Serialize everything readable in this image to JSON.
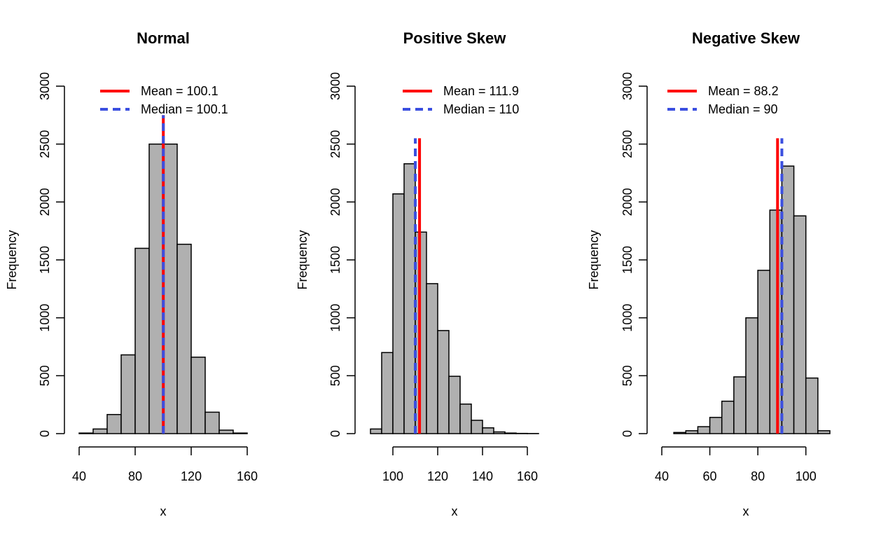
{
  "colors": {
    "bar_fill": "#b0b0b0",
    "bar_stroke": "#000000",
    "mean_line": "#ff0000",
    "median_line": "#3b4fe0"
  },
  "chart_data": [
    {
      "type": "bar",
      "title": "Normal",
      "xlabel": "x",
      "ylabel": "Frequency",
      "xlim": [
        40,
        160
      ],
      "ylim": [
        0,
        3000
      ],
      "xticks": [
        40,
        80,
        120,
        160
      ],
      "yticks": [
        0,
        500,
        1000,
        1500,
        2000,
        2500,
        3000
      ],
      "bins": [
        {
          "from": 40,
          "to": 50,
          "count": 5
        },
        {
          "from": 50,
          "to": 60,
          "count": 40
        },
        {
          "from": 60,
          "to": 70,
          "count": 165
        },
        {
          "from": 70,
          "to": 80,
          "count": 680
        },
        {
          "from": 80,
          "to": 90,
          "count": 1600
        },
        {
          "from": 90,
          "to": 100,
          "count": 2500
        },
        {
          "from": 100,
          "to": 110,
          "count": 2500
        },
        {
          "from": 110,
          "to": 120,
          "count": 1635
        },
        {
          "from": 120,
          "to": 130,
          "count": 660
        },
        {
          "from": 130,
          "to": 140,
          "count": 185
        },
        {
          "from": 140,
          "to": 150,
          "count": 30
        },
        {
          "from": 150,
          "to": 160,
          "count": 5
        }
      ],
      "mean": 100.1,
      "median": 100.1,
      "line_top": 2750,
      "legend": {
        "position": "top-right",
        "mean_label": "Mean =  100.1",
        "median_label": "Median =  100.1"
      }
    },
    {
      "type": "bar",
      "title": "Positive Skew",
      "xlabel": "x",
      "ylabel": "Frequency",
      "xlim": [
        90,
        165
      ],
      "ylim": [
        0,
        3000
      ],
      "xticks": [
        100,
        120,
        140,
        160
      ],
      "yticks": [
        0,
        500,
        1000,
        1500,
        2000,
        2500,
        3000
      ],
      "bins": [
        {
          "from": 90,
          "to": 95,
          "count": 40
        },
        {
          "from": 95,
          "to": 100,
          "count": 700
        },
        {
          "from": 100,
          "to": 105,
          "count": 2070
        },
        {
          "from": 105,
          "to": 110,
          "count": 2330
        },
        {
          "from": 110,
          "to": 115,
          "count": 1740
        },
        {
          "from": 115,
          "to": 120,
          "count": 1295
        },
        {
          "from": 120,
          "to": 125,
          "count": 890
        },
        {
          "from": 125,
          "to": 130,
          "count": 495
        },
        {
          "from": 130,
          "to": 135,
          "count": 255
        },
        {
          "from": 135,
          "to": 140,
          "count": 115
        },
        {
          "from": 140,
          "to": 145,
          "count": 50
        },
        {
          "from": 145,
          "to": 150,
          "count": 15
        },
        {
          "from": 150,
          "to": 155,
          "count": 5
        },
        {
          "from": 155,
          "to": 160,
          "count": 2
        },
        {
          "from": 160,
          "to": 165,
          "count": 1
        }
      ],
      "mean": 111.9,
      "median": 110,
      "line_top": 2550,
      "legend": {
        "position": "top-right",
        "mean_label": "Mean =  111.9",
        "median_label": "Median =  110"
      }
    },
    {
      "type": "bar",
      "title": "Negative Skew",
      "xlabel": "x",
      "ylabel": "Frequency",
      "xlim": [
        40,
        110
      ],
      "ylim": [
        0,
        3000
      ],
      "xticks": [
        40,
        60,
        80,
        100
      ],
      "yticks": [
        0,
        500,
        1000,
        1500,
        2000,
        2500,
        3000
      ],
      "bins": [
        {
          "from": 45,
          "to": 50,
          "count": 10
        },
        {
          "from": 50,
          "to": 55,
          "count": 25
        },
        {
          "from": 55,
          "to": 60,
          "count": 60
        },
        {
          "from": 60,
          "to": 65,
          "count": 140
        },
        {
          "from": 65,
          "to": 70,
          "count": 280
        },
        {
          "from": 70,
          "to": 75,
          "count": 490
        },
        {
          "from": 75,
          "to": 80,
          "count": 1000
        },
        {
          "from": 80,
          "to": 85,
          "count": 1410
        },
        {
          "from": 85,
          "to": 90,
          "count": 1930
        },
        {
          "from": 90,
          "to": 95,
          "count": 2310
        },
        {
          "from": 95,
          "to": 100,
          "count": 1880
        },
        {
          "from": 100,
          "to": 105,
          "count": 480
        },
        {
          "from": 105,
          "to": 110,
          "count": 25
        }
      ],
      "mean": 88.2,
      "median": 90,
      "line_top": 2550,
      "legend": {
        "position": "top-left",
        "mean_label": "Mean =  88.2",
        "median_label": "Median =  90"
      }
    }
  ]
}
